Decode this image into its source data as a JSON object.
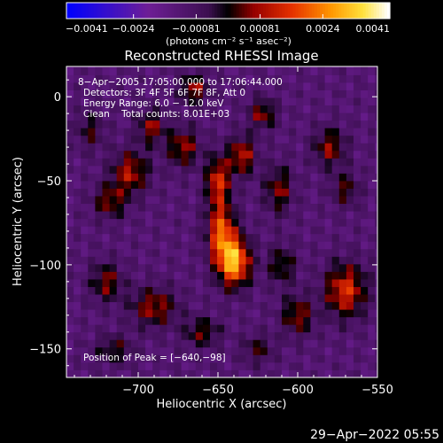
{
  "chart_data": {
    "type": "heatmap",
    "title": "Reconstructed RHESSI Image",
    "xlabel": "Heliocentric X (arcsec)",
    "ylabel": "Heliocentric Y (arcsec)",
    "xlim": [
      -745,
      -550
    ],
    "ylim": [
      -167,
      18
    ],
    "x_ticks": [
      {
        "value": -700,
        "label": "−700"
      },
      {
        "value": -650,
        "label": "−650"
      },
      {
        "value": -600,
        "label": "−600"
      },
      {
        "value": -550,
        "label": "−550"
      }
    ],
    "y_ticks": [
      {
        "value": 0,
        "label": "0"
      },
      {
        "value": -50,
        "label": "−50"
      },
      {
        "value": -100,
        "label": "−100"
      },
      {
        "value": -150,
        "label": "−150"
      }
    ],
    "annotations": [
      "8−Apr−2005 17:05:00.000 to 17:06:44.000",
      "Detectors: 3F 4F 5F 6F 7F 8F, Att 0",
      "Energy Range: 6.0 − 12.0 keV",
      "Clean    Total counts: 8.01E+03"
    ],
    "peak_label": "Position of Peak = [−640,−98]",
    "peak": [
      -640,
      -98
    ],
    "colorbar": {
      "min": -0.0041,
      "max": 0.0041,
      "ticks": [
        "−0.0041",
        "−0.0024",
        "−0.00081",
        "0.00081",
        "0.0024",
        "0.0041"
      ],
      "tick_values": [
        -0.0041,
        -0.0024,
        -0.00081,
        0.00081,
        0.0024,
        0.0041
      ],
      "unit_label": "(photons cm⁻² s⁻¹ asec⁻²)"
    },
    "sources": [
      {
        "x": -640,
        "y": -98,
        "amp": 0.0041,
        "sx": 7,
        "sy": 10
      },
      {
        "x": -648,
        "y": -80,
        "amp": 0.003,
        "sx": 6,
        "sy": 12
      },
      {
        "x": -650,
        "y": -50,
        "amp": 0.0026,
        "sx": 5,
        "sy": 10
      },
      {
        "x": -635,
        "y": -35,
        "amp": 0.0022,
        "sx": 6,
        "sy": 8
      },
      {
        "x": -672,
        "y": -30,
        "amp": 0.0019,
        "sx": 7,
        "sy": 8
      },
      {
        "x": -705,
        "y": -45,
        "amp": 0.0021,
        "sx": 8,
        "sy": 9
      },
      {
        "x": -718,
        "y": -62,
        "amp": 0.0017,
        "sx": 7,
        "sy": 7
      },
      {
        "x": -692,
        "y": -18,
        "amp": 0.0018,
        "sx": 6,
        "sy": 7
      },
      {
        "x": -665,
        "y": 5,
        "amp": 0.002,
        "sx": 6,
        "sy": 6
      },
      {
        "x": -622,
        "y": -10,
        "amp": 0.0018,
        "sx": 6,
        "sy": 6
      },
      {
        "x": -612,
        "y": -55,
        "amp": 0.0017,
        "sx": 6,
        "sy": 10
      },
      {
        "x": -580,
        "y": -30,
        "amp": 0.0018,
        "sx": 7,
        "sy": 8
      },
      {
        "x": -570,
        "y": -55,
        "amp": 0.0014,
        "sx": 6,
        "sy": 7
      },
      {
        "x": -570,
        "y": -115,
        "amp": 0.0026,
        "sx": 9,
        "sy": 11
      },
      {
        "x": -600,
        "y": -130,
        "amp": 0.0018,
        "sx": 7,
        "sy": 8
      },
      {
        "x": -610,
        "y": -100,
        "amp": 0.0015,
        "sx": 6,
        "sy": 8
      },
      {
        "x": -690,
        "y": -125,
        "amp": 0.0019,
        "sx": 10,
        "sy": 8
      },
      {
        "x": -720,
        "y": -110,
        "amp": 0.0017,
        "sx": 7,
        "sy": 8
      },
      {
        "x": -715,
        "y": -150,
        "amp": 0.0013,
        "sx": 8,
        "sy": 6
      },
      {
        "x": -660,
        "y": -140,
        "amp": 0.0015,
        "sx": 8,
        "sy": 6
      },
      {
        "x": -625,
        "y": -150,
        "amp": 0.0012,
        "sx": 7,
        "sy": 6
      },
      {
        "x": -730,
        "y": -20,
        "amp": 0.0012,
        "sx": 6,
        "sy": 8
      }
    ]
  },
  "timestamp": "29−Apr−2022 05:55"
}
